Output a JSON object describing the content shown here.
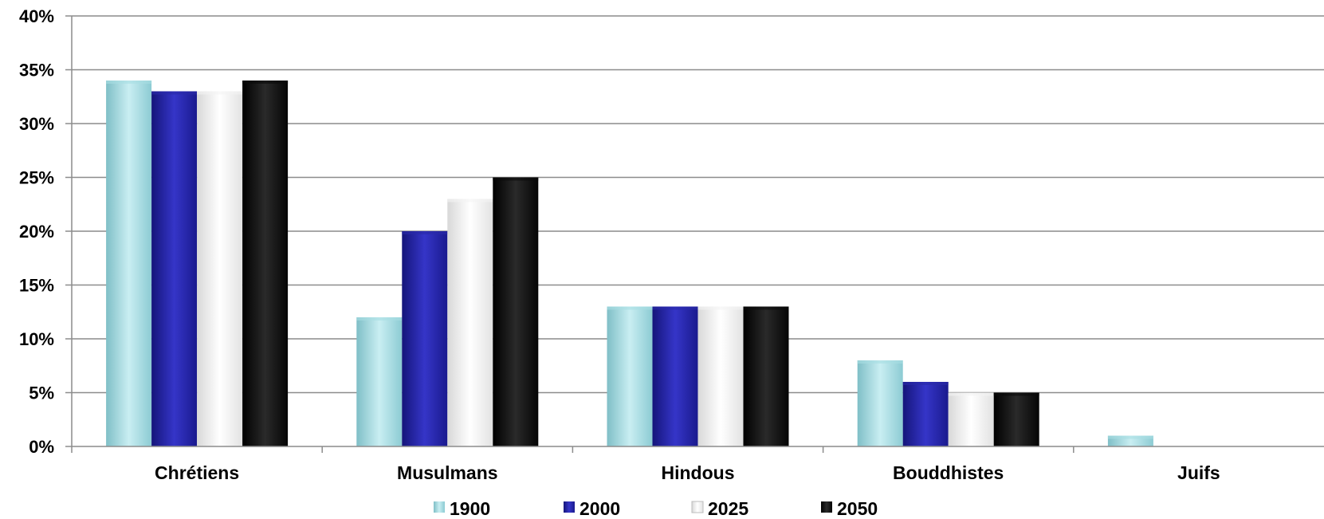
{
  "chart_data": {
    "type": "bar",
    "categories": [
      "Chrétiens",
      "Musulmans",
      "Hindous",
      "Bouddhistes",
      "Juifs"
    ],
    "series": [
      {
        "name": "1900",
        "values": [
          34,
          12,
          13,
          8,
          1
        ],
        "color": "#a8dde3"
      },
      {
        "name": "2000",
        "values": [
          33,
          20,
          13,
          6,
          0
        ],
        "color": "#2a2aa8"
      },
      {
        "name": "2025",
        "values": [
          33,
          23,
          13,
          5,
          0
        ],
        "color": "#f4f4f4"
      },
      {
        "name": "2050",
        "values": [
          34,
          25,
          13,
          5,
          0
        ],
        "color": "#0a0a0a"
      }
    ],
    "yticks": [
      "0%",
      "5%",
      "10%",
      "15%",
      "20%",
      "25%",
      "30%",
      "35%",
      "40%"
    ],
    "ylim": [
      0,
      40
    ],
    "grid": true,
    "legend_position": "bottom"
  }
}
